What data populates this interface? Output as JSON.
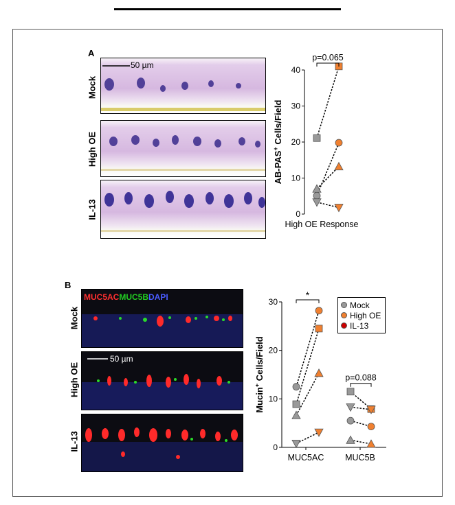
{
  "panels": {
    "A": {
      "letter": "A",
      "scalebar": "50 µm",
      "rows": [
        "Mock",
        "High OE",
        "IL-13"
      ]
    },
    "B": {
      "letter": "B",
      "stain": {
        "muc5ac": "MUC5AC",
        "muc5b": "MUC5B",
        "dapi": "DAPI"
      },
      "scalebar": "50 µm",
      "rows": [
        "Mock",
        "High OE",
        "IL-13"
      ]
    }
  },
  "colors": {
    "mock": "#999999",
    "high_oe": "#f08030",
    "il13": "#cc0000",
    "muc5ac": "#ff3030",
    "muc5b": "#22cc22",
    "dapi": "#4a5cff"
  },
  "chart_data": [
    {
      "type": "scatter",
      "panel": "A",
      "ylabel": "AB-PAS+ Cells/Field",
      "xlabel": "High OE Response",
      "ylim": [
        0,
        40
      ],
      "yticks": [
        0,
        10,
        20,
        30,
        40
      ],
      "annotation": "p=0.065",
      "pairs": [
        {
          "shape": "square",
          "before": 21.1,
          "after": 41.0
        },
        {
          "shape": "circle",
          "before": 5.1,
          "after": 19.8
        },
        {
          "shape": "triangle",
          "before": 7.0,
          "after": 13.2
        },
        {
          "shape": "invtri",
          "before": 3.3,
          "after": 1.8
        }
      ]
    },
    {
      "type": "scatter",
      "panel": "B",
      "ylabel": "Mucin+ Cells/Field",
      "categories": [
        "MUC5AC",
        "MUC5B"
      ],
      "ylim": [
        0,
        30
      ],
      "yticks": [
        0,
        10,
        20,
        30
      ],
      "annotations": [
        "*",
        "p=0.088"
      ],
      "legend": [
        "Mock",
        "High OE",
        "IL-13"
      ],
      "pairs": [
        {
          "category": "MUC5AC",
          "shape": "circle",
          "before": 12.5,
          "after": 28.2
        },
        {
          "category": "MUC5AC",
          "shape": "square",
          "before": 8.9,
          "after": 24.5
        },
        {
          "category": "MUC5AC",
          "shape": "triangle",
          "before": 6.6,
          "after": 15.3
        },
        {
          "category": "MUC5AC",
          "shape": "invtri",
          "before": 0.8,
          "after": 3.1
        },
        {
          "category": "MUC5B",
          "shape": "square",
          "before": 11.5,
          "after": 7.9
        },
        {
          "category": "MUC5B",
          "shape": "invtri",
          "before": 8.3,
          "after": 7.8
        },
        {
          "category": "MUC5B",
          "shape": "circle",
          "before": 5.5,
          "after": 4.3
        },
        {
          "category": "MUC5B",
          "shape": "triangle",
          "before": 1.5,
          "after": 0.7
        }
      ]
    }
  ]
}
